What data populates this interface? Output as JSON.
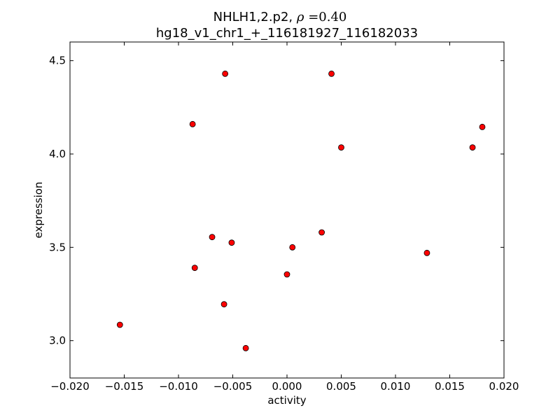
{
  "chart_data": {
    "type": "scatter",
    "title_line1_prefix": "NHLH1,2.p2, ",
    "title_rho_symbol": "ρ",
    "title_rho_eq": " =0.40",
    "title_line2": "hg18_v1_chr1_+_116181927_116182033",
    "xlabel": "activity",
    "ylabel": "expression",
    "xlim": [
      -0.02,
      0.02
    ],
    "ylim": [
      2.8,
      4.6
    ],
    "xticks": [
      -0.02,
      -0.015,
      -0.01,
      -0.005,
      0.0,
      0.005,
      0.01,
      0.015,
      0.02
    ],
    "xtick_labels": [
      "−0.020",
      "−0.015",
      "−0.010",
      "−0.005",
      "0.000",
      "0.005",
      "0.010",
      "0.015",
      "0.020"
    ],
    "yticks": [
      3.0,
      3.5,
      4.0,
      4.5
    ],
    "ytick_labels": [
      "3.0",
      "3.5",
      "4.0",
      "4.5"
    ],
    "grid": false,
    "marker_color": "#ff0000",
    "marker_edge": "#000000",
    "points": [
      {
        "x": -0.0154,
        "y": 3.085
      },
      {
        "x": -0.0087,
        "y": 4.16
      },
      {
        "x": -0.0085,
        "y": 3.39
      },
      {
        "x": -0.0069,
        "y": 3.555
      },
      {
        "x": -0.0057,
        "y": 4.43
      },
      {
        "x": -0.0058,
        "y": 3.195
      },
      {
        "x": -0.0051,
        "y": 3.525
      },
      {
        "x": -0.0038,
        "y": 2.96
      },
      {
        "x": 0.0,
        "y": 3.355
      },
      {
        "x": 0.0005,
        "y": 3.5
      },
      {
        "x": 0.0032,
        "y": 3.58
      },
      {
        "x": 0.0041,
        "y": 4.43
      },
      {
        "x": 0.005,
        "y": 4.035
      },
      {
        "x": 0.0129,
        "y": 3.47
      },
      {
        "x": 0.0171,
        "y": 4.035
      },
      {
        "x": 0.018,
        "y": 4.145
      }
    ]
  }
}
